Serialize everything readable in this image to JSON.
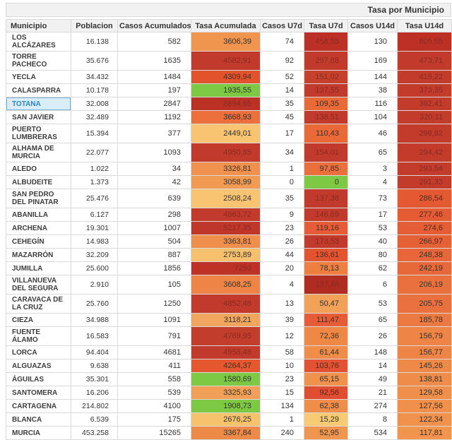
{
  "header": {
    "title": "Tasa por Municipio"
  },
  "table": {
    "columns": [
      "Municipio",
      "Poblacion",
      "Casos Acumulados",
      "Tasa Acumulada",
      "Casos U7d",
      "Tasa U7d",
      "Casos U14d",
      "Tasa U14d"
    ],
    "selected_municipio": "TOTANA",
    "colors": {
      "header_bg": "#f1f1f1",
      "selected_bg": "#d9edf8",
      "selected_text": "#2e86c1",
      "green": "#7dc944",
      "dark_red": "#c23a2b"
    },
    "rows": [
      {
        "municipio": "LOS ALCÁZARES",
        "poblacion": "16.138",
        "casos_acumulados": "582",
        "tasa_acumulada": "3606,39",
        "tasa_acumulada_color": "#f0954e",
        "casos_u7d": "74",
        "tasa_u7d": "458,55",
        "tasa_u7d_color": "#bd3025",
        "casos_u14d": "130",
        "tasa_u14d": "805,55",
        "tasa_u14d_color": "#bd3025",
        "selected": false
      },
      {
        "municipio": "TORRE PACHECO",
        "poblacion": "35.676",
        "casos_acumulados": "1635",
        "tasa_acumulada": "4582,91",
        "tasa_acumulada_color": "#c23a2b",
        "casos_u7d": "92",
        "tasa_u7d": "257,88",
        "tasa_u7d_color": "#c23a2b",
        "casos_u14d": "169",
        "tasa_u14d": "473,71",
        "tasa_u14d_color": "#c23a2b",
        "selected": false
      },
      {
        "municipio": "YECLA",
        "poblacion": "34.432",
        "casos_acumulados": "1484",
        "tasa_acumulada": "4309,94",
        "tasa_acumulada_color": "#e2532c",
        "casos_u7d": "52",
        "tasa_u7d": "151,02",
        "tasa_u7d_color": "#c6402c",
        "casos_u14d": "144",
        "tasa_u14d": "418,22",
        "tasa_u14d_color": "#c33b2b",
        "selected": false
      },
      {
        "municipio": "CALASPARRA",
        "poblacion": "10.178",
        "casos_acumulados": "197",
        "tasa_acumulada": "1935,55",
        "tasa_acumulada_color": "#7dc944",
        "casos_u7d": "14",
        "tasa_u7d": "137,55",
        "tasa_u7d_color": "#c23a2b",
        "casos_u14d": "38",
        "tasa_u14d": "373,35",
        "tasa_u14d_color": "#c33b2b",
        "selected": false
      },
      {
        "municipio": "TOTANA",
        "poblacion": "32.008",
        "casos_acumulados": "2847",
        "tasa_acumulada": "8894,65",
        "tasa_acumulada_color": "#bb3124",
        "casos_u7d": "35",
        "tasa_u7d": "109,35",
        "tasa_u7d_color": "#ea6a37",
        "casos_u14d": "116",
        "tasa_u14d": "362,41",
        "tasa_u14d_color": "#c33b2b",
        "selected": true
      },
      {
        "municipio": "SAN JAVIER",
        "poblacion": "32.489",
        "casos_acumulados": "1192",
        "tasa_acumulada": "3668,93",
        "tasa_acumulada_color": "#ec6f3c",
        "casos_u7d": "45",
        "tasa_u7d": "138,51",
        "tasa_u7d_color": "#c23a2b",
        "casos_u14d": "104",
        "tasa_u14d": "320,11",
        "tasa_u14d_color": "#c33b2b",
        "selected": false
      },
      {
        "municipio": "PUERTO LUMBRERAS",
        "poblacion": "15.394",
        "casos_acumulados": "377",
        "tasa_acumulada": "2449,01",
        "tasa_acumulada_color": "#f8c471",
        "casos_u7d": "17",
        "tasa_u7d": "110,43",
        "tasa_u7d_color": "#ea6a37",
        "casos_u14d": "46",
        "tasa_u14d": "298,82",
        "tasa_u14d_color": "#c33b2b",
        "selected": false
      },
      {
        "municipio": "ALHAMA DE MURCIA",
        "poblacion": "22.077",
        "casos_acumulados": "1093",
        "tasa_acumulada": "4950,85",
        "tasa_acumulada_color": "#c23a2b",
        "casos_u7d": "34",
        "tasa_u7d": "154,01",
        "tasa_u7d_color": "#c23a2b",
        "casos_u14d": "65",
        "tasa_u14d": "294,42",
        "tasa_u14d_color": "#c33b2b",
        "selected": false
      },
      {
        "municipio": "ALEDO",
        "poblacion": "1.022",
        "casos_acumulados": "34",
        "tasa_acumulada": "3326,81",
        "tasa_acumulada_color": "#f0914d",
        "casos_u7d": "1",
        "tasa_u7d": "97,85",
        "tasa_u7d_color": "#eb6f3b",
        "casos_u14d": "3",
        "tasa_u14d": "293,54",
        "tasa_u14d_color": "#c33b2b",
        "selected": false
      },
      {
        "municipio": "ALBUDEITE",
        "poblacion": "1.373",
        "casos_acumulados": "42",
        "tasa_acumulada": "3058,99",
        "tasa_acumulada_color": "#f09a52",
        "casos_u7d": "0",
        "tasa_u7d": "0",
        "tasa_u7d_color": "#7dc944",
        "casos_u14d": "4",
        "tasa_u14d": "291,33",
        "tasa_u14d_color": "#c33b2b",
        "selected": false
      },
      {
        "municipio": "SAN PEDRO DEL PINATAR",
        "poblacion": "25.476",
        "casos_acumulados": "639",
        "tasa_acumulada": "2508,24",
        "tasa_acumulada_color": "#f8c471",
        "casos_u7d": "35",
        "tasa_u7d": "137,38",
        "tasa_u7d_color": "#c23a2b",
        "casos_u14d": "73",
        "tasa_u14d": "286,54",
        "tasa_u14d_color": "#e45832",
        "selected": false
      },
      {
        "municipio": "ABANILLA",
        "poblacion": "6.127",
        "casos_acumulados": "298",
        "tasa_acumulada": "4863,72",
        "tasa_acumulada_color": "#c23a2b",
        "casos_u7d": "9",
        "tasa_u7d": "146,89",
        "tasa_u7d_color": "#c23a2b",
        "casos_u14d": "17",
        "tasa_u14d": "277,46",
        "tasa_u14d_color": "#e45b34",
        "selected": false
      },
      {
        "municipio": "ARCHENA",
        "poblacion": "19.301",
        "casos_acumulados": "1007",
        "tasa_acumulada": "5217,35",
        "tasa_acumulada_color": "#c0372a",
        "casos_u7d": "23",
        "tasa_u7d": "119,16",
        "tasa_u7d_color": "#e65c36",
        "casos_u14d": "53",
        "tasa_u14d": "274,6",
        "tasa_u14d_color": "#e55d35",
        "selected": false
      },
      {
        "municipio": "CEHEGÍN",
        "poblacion": "14.983",
        "casos_acumulados": "504",
        "tasa_acumulada": "3363,81",
        "tasa_acumulada_color": "#f08e4b",
        "casos_u7d": "26",
        "tasa_u7d": "173,53",
        "tasa_u7d_color": "#c23a2b",
        "casos_u14d": "40",
        "tasa_u14d": "266,97",
        "tasa_u14d_color": "#e66036",
        "selected": false
      },
      {
        "municipio": "MAZARRÓN",
        "poblacion": "32.209",
        "casos_acumulados": "887",
        "tasa_acumulada": "2753,89",
        "tasa_acumulada_color": "#f7c06c",
        "casos_u7d": "44",
        "tasa_u7d": "136,61",
        "tasa_u7d_color": "#e4532f",
        "casos_u14d": "80",
        "tasa_u14d": "248,38",
        "tasa_u14d_color": "#e8663a",
        "selected": false
      },
      {
        "municipio": "JUMILLA",
        "poblacion": "25.600",
        "casos_acumulados": "1856",
        "tasa_acumulada": "7250",
        "tasa_acumulada_color": "#bd3126",
        "casos_u7d": "20",
        "tasa_u7d": "78,13",
        "tasa_u7d_color": "#ee7f41",
        "casos_u14d": "62",
        "tasa_u14d": "242,19",
        "tasa_u14d_color": "#e8683a",
        "selected": false
      },
      {
        "municipio": "VILLANUEVA DEL SEGURA",
        "poblacion": "2.910",
        "casos_acumulados": "105",
        "tasa_acumulada": "3608,25",
        "tasa_acumulada_color": "#ee8546",
        "casos_u7d": "4",
        "tasa_u7d": "137,46",
        "tasa_u7d_color": "#b02c20",
        "casos_u14d": "6",
        "tasa_u14d": "206,19",
        "tasa_u14d_color": "#ea713e",
        "selected": false
      },
      {
        "municipio": "CARAVACA DE LA CRUZ",
        "poblacion": "25.760",
        "casos_acumulados": "1250",
        "tasa_acumulada": "4852,48",
        "tasa_acumulada_color": "#c23a2b",
        "casos_u7d": "13",
        "tasa_u7d": "50,47",
        "tasa_u7d_color": "#f2a158",
        "casos_u14d": "53",
        "tasa_u14d": "205,75",
        "tasa_u14d_color": "#ea713e",
        "selected": false
      },
      {
        "municipio": "CIEZA",
        "poblacion": "34.988",
        "casos_acumulados": "1091",
        "tasa_acumulada": "3118,21",
        "tasa_acumulada_color": "#f2a55c",
        "casos_u7d": "39",
        "tasa_u7d": "111,47",
        "tasa_u7d_color": "#e65c36",
        "casos_u14d": "65",
        "tasa_u14d": "185,78",
        "tasa_u14d_color": "#ec7941",
        "selected": false
      },
      {
        "municipio": "FUENTE ÁLAMO",
        "poblacion": "16.583",
        "casos_acumulados": "791",
        "tasa_acumulada": "4769,95",
        "tasa_acumulada_color": "#c33d2c",
        "casos_u7d": "12",
        "tasa_u7d": "72,36",
        "tasa_u7d_color": "#ef8845",
        "casos_u14d": "26",
        "tasa_u14d": "156,79",
        "tasa_u14d_color": "#ee8445",
        "selected": false
      },
      {
        "municipio": "LORCA",
        "poblacion": "94.404",
        "casos_acumulados": "4681",
        "tasa_acumulada": "4958,48",
        "tasa_acumulada_color": "#c23a2b",
        "casos_u7d": "58",
        "tasa_u7d": "61,44",
        "tasa_u7d_color": "#ef8d49",
        "casos_u14d": "148",
        "tasa_u14d": "156,77",
        "tasa_u14d_color": "#ee8445",
        "selected": false
      },
      {
        "municipio": "ALGUAZAS",
        "poblacion": "9.638",
        "casos_acumulados": "411",
        "tasa_acumulada": "4264,37",
        "tasa_acumulada_color": "#e4572f",
        "casos_u7d": "10",
        "tasa_u7d": "103,76",
        "tasa_u7d_color": "#e25233",
        "casos_u14d": "14",
        "tasa_u14d": "145,26",
        "tasa_u14d_color": "#ef8947",
        "selected": false
      },
      {
        "municipio": "ÁGUILAS",
        "poblacion": "35.301",
        "casos_acumulados": "558",
        "tasa_acumulada": "1580,69",
        "tasa_acumulada_color": "#7dc944",
        "casos_u7d": "23",
        "tasa_u7d": "65,15",
        "tasa_u7d_color": "#f0914c",
        "casos_u14d": "49",
        "tasa_u14d": "138,81",
        "tasa_u14d_color": "#f08c49",
        "selected": false
      },
      {
        "municipio": "SANTOMERA",
        "poblacion": "16.206",
        "casos_acumulados": "539",
        "tasa_acumulada": "3325,93",
        "tasa_acumulada_color": "#f2a058",
        "casos_u7d": "15",
        "tasa_u7d": "92,56",
        "tasa_u7d_color": "#e04d30",
        "casos_u14d": "21",
        "tasa_u14d": "129,58",
        "tasa_u14d_color": "#f08f4b",
        "selected": false
      },
      {
        "municipio": "CARTAGENA",
        "poblacion": "214.802",
        "casos_acumulados": "4100",
        "tasa_acumulada": "1908,73",
        "tasa_acumulada_color": "#7dc944",
        "casos_u7d": "134",
        "tasa_u7d": "62,38",
        "tasa_u7d_color": "#ef8d49",
        "casos_u14d": "274",
        "tasa_u14d": "127,56",
        "tasa_u14d_color": "#f0904b",
        "selected": false
      },
      {
        "municipio": "BLANCA",
        "poblacion": "6.539",
        "casos_acumulados": "175",
        "tasa_acumulada": "2676,25",
        "tasa_acumulada_color": "#f7c26c",
        "casos_u7d": "1",
        "tasa_u7d": "15,29",
        "tasa_u7d_color": "#f8ca74",
        "casos_u14d": "8",
        "tasa_u14d": "122,34",
        "tasa_u14d_color": "#f1924c",
        "selected": false
      },
      {
        "municipio": "MURCIA",
        "poblacion": "453.258",
        "casos_acumulados": "15265",
        "tasa_acumulada": "3367,84",
        "tasa_acumulada_color": "#ee8a48",
        "casos_u7d": "240",
        "tasa_u7d": "52,95",
        "tasa_u7d_color": "#f0954e",
        "casos_u14d": "534",
        "tasa_u14d": "117,81",
        "tasa_u14d_color": "#f1944d",
        "selected": false
      }
    ]
  }
}
